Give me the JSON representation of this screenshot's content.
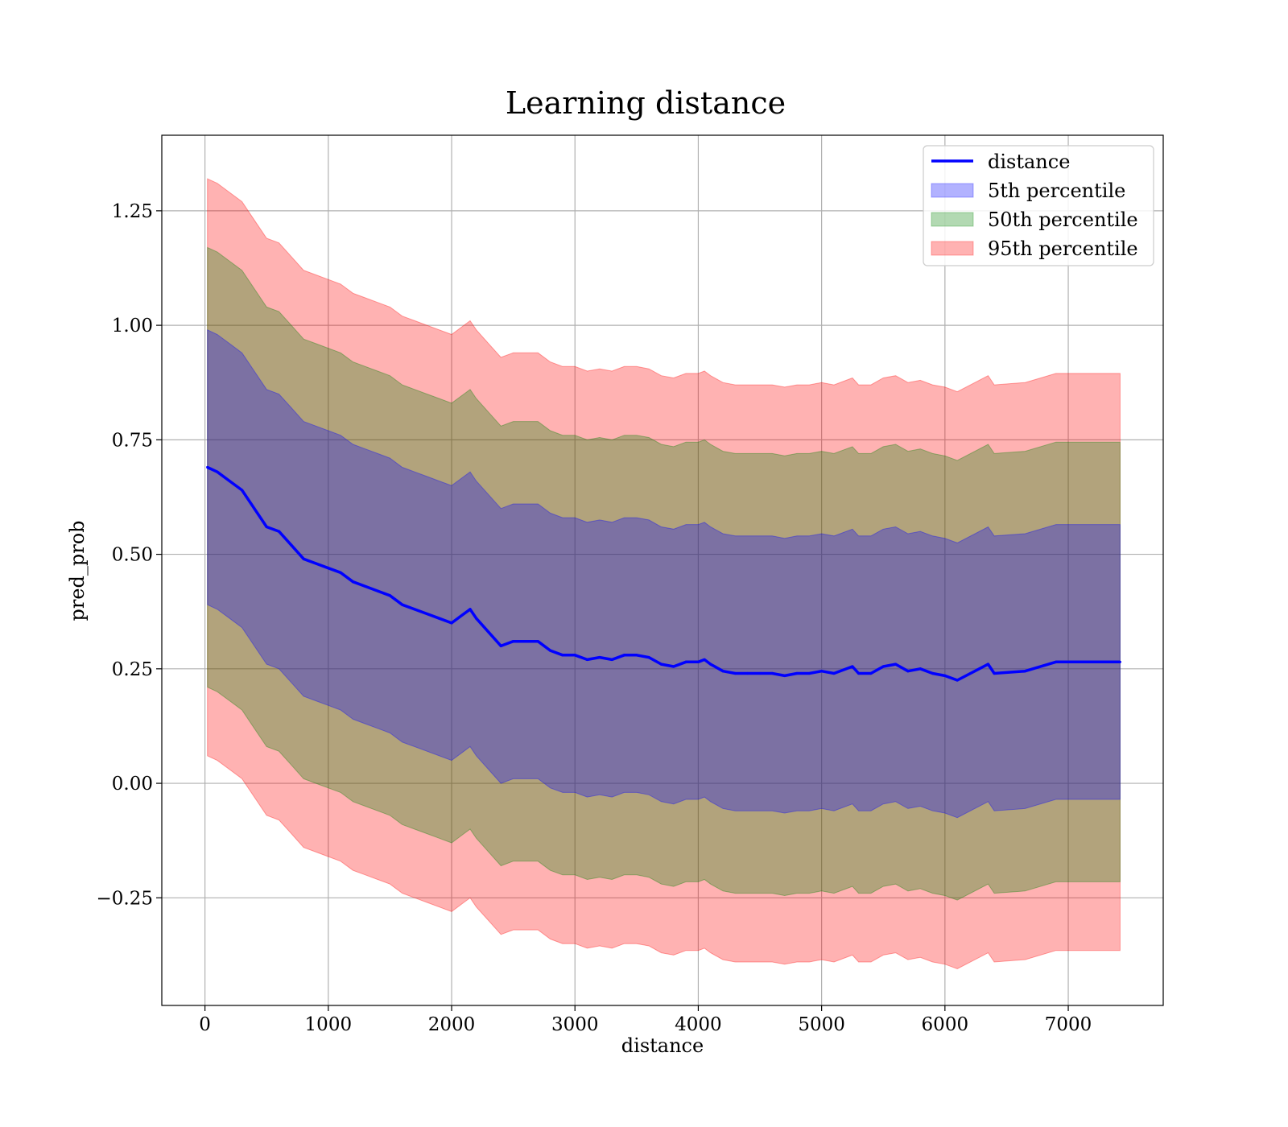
{
  "chart_data": {
    "type": "area",
    "title": "Learning distance",
    "xlabel": "distance",
    "ylabel": "pred_prob",
    "xlim": [
      -350,
      7770
    ],
    "ylim": [
      -0.485,
      1.415
    ],
    "xticks": [
      0,
      1000,
      2000,
      3000,
      4000,
      5000,
      6000,
      7000
    ],
    "yticks": [
      -0.25,
      0.0,
      0.25,
      0.5,
      0.75,
      1.0,
      1.25
    ],
    "ytick_labels": [
      "−0.25",
      "0.00",
      "0.25",
      "0.50",
      "0.75",
      "1.00",
      "1.25"
    ],
    "grid": true,
    "legend_position": "top-right",
    "colors": {
      "line": "#0000ff",
      "band5": "#0000ff",
      "band50": "#008000",
      "band95": "#ff0000"
    },
    "legend": [
      {
        "label": "distance",
        "kind": "line",
        "color": "#0000ff"
      },
      {
        "label": "5th percentile",
        "kind": "band",
        "color": "#0000ff"
      },
      {
        "label": "50th percentile",
        "kind": "band",
        "color": "#008000"
      },
      {
        "label": "95th percentile",
        "kind": "band",
        "color": "#ff0000"
      }
    ],
    "x": [
      20,
      100,
      200,
      300,
      400,
      500,
      600,
      700,
      800,
      900,
      1000,
      1100,
      1200,
      1300,
      1400,
      1500,
      1600,
      1700,
      1800,
      1900,
      2000,
      2100,
      2150,
      2200,
      2300,
      2400,
      2500,
      2600,
      2700,
      2800,
      2900,
      3000,
      3100,
      3200,
      3300,
      3400,
      3500,
      3600,
      3700,
      3800,
      3900,
      4000,
      4050,
      4100,
      4200,
      4300,
      4400,
      4500,
      4600,
      4700,
      4800,
      4900,
      5000,
      5100,
      5250,
      5300,
      5400,
      5500,
      5600,
      5700,
      5800,
      5900,
      6000,
      6100,
      6350,
      6400,
      6650,
      6900,
      7420
    ],
    "series": [
      {
        "name": "distance",
        "values": [
          0.69,
          0.68,
          0.66,
          0.64,
          0.6,
          0.56,
          0.55,
          0.52,
          0.49,
          0.48,
          0.47,
          0.46,
          0.44,
          0.43,
          0.42,
          0.41,
          0.39,
          0.38,
          0.37,
          0.36,
          0.35,
          0.37,
          0.38,
          0.36,
          0.33,
          0.3,
          0.31,
          0.31,
          0.31,
          0.29,
          0.28,
          0.28,
          0.27,
          0.275,
          0.27,
          0.28,
          0.28,
          0.275,
          0.26,
          0.255,
          0.265,
          0.265,
          0.27,
          0.26,
          0.245,
          0.24,
          0.24,
          0.24,
          0.24,
          0.235,
          0.24,
          0.24,
          0.245,
          0.24,
          0.255,
          0.24,
          0.24,
          0.255,
          0.26,
          0.245,
          0.25,
          0.24,
          0.235,
          0.225,
          0.26,
          0.24,
          0.245,
          0.265,
          0.265
        ]
      }
    ],
    "bands": [
      {
        "name": "5th percentile",
        "halfwidth": 0.3
      },
      {
        "name": "50th percentile",
        "halfwidth": 0.48
      },
      {
        "name": "95th percentile",
        "halfwidth": 0.63
      }
    ]
  }
}
